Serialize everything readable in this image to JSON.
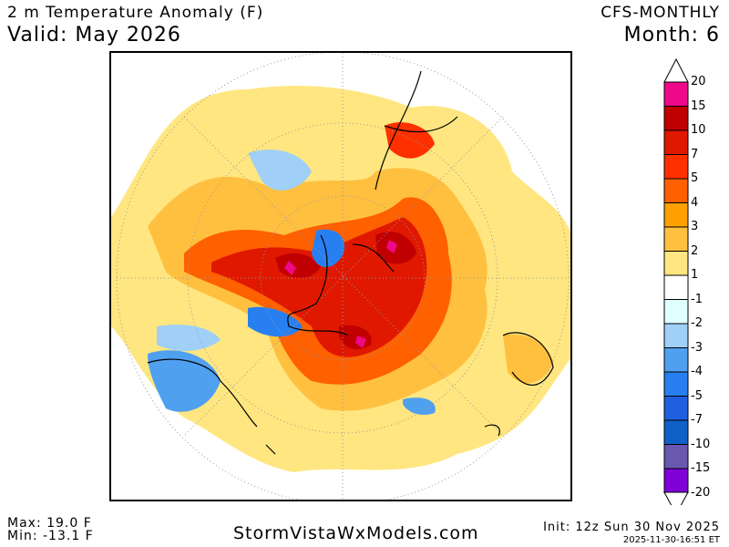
{
  "header": {
    "title": "2 m Temperature Anomaly (F)",
    "valid": "Valid: May 2026",
    "model": "CFS-MONTHLY",
    "month": "Month: 6"
  },
  "colorbar": {
    "labels": [
      "20",
      "15",
      "10",
      "7",
      "5",
      "4",
      "3",
      "2",
      "1",
      "-1",
      "-2",
      "-3",
      "-4",
      "-5",
      "-7",
      "-10",
      "-15",
      "-20"
    ],
    "colors": [
      "#f0088a",
      "#c00000",
      "#e01800",
      "#ff3000",
      "#ff6000",
      "#ffa000",
      "#ffc040",
      "#ffe680",
      "#ffffff",
      "#e0ffff",
      "#a0d0f8",
      "#50a0f0",
      "#2880f0",
      "#2060e0",
      "#1060c8",
      "#6858b0",
      "#8000d8"
    ]
  },
  "footer": {
    "max": "Max: 19.0 F",
    "min": "Min: -13.1 F",
    "site": "StormVistaWxModels.com",
    "init": "Init: 12z Sun 30 Nov 2025",
    "stamp": "2025-11-30-16:51 ET"
  }
}
